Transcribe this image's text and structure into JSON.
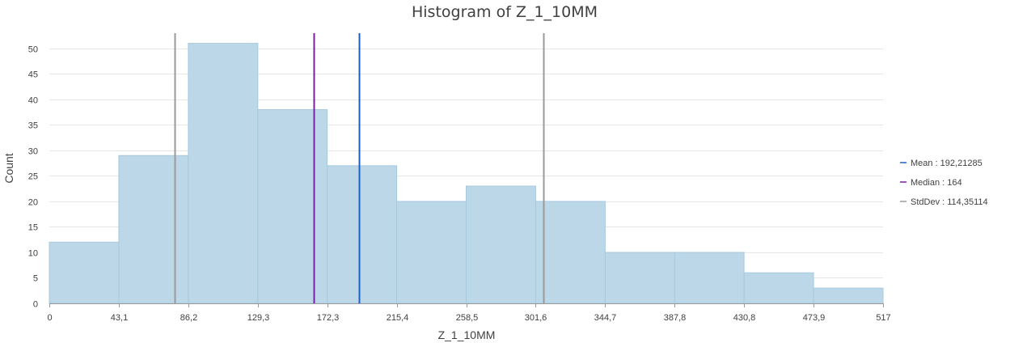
{
  "chart_data": {
    "type": "bar",
    "title": "Histogram of Z_1_10MM",
    "xlabel": "Z_1_10MM",
    "ylabel": "Count",
    "bin_edges": [
      0,
      43.1,
      86.2,
      129.3,
      172.3,
      215.4,
      258.5,
      301.6,
      344.7,
      387.8,
      430.8,
      473.9,
      517
    ],
    "x_tick_labels": [
      "0",
      "43,1",
      "86,2",
      "129,3",
      "172,3",
      "215,4",
      "258,5",
      "301,6",
      "344,7",
      "387,8",
      "430,8",
      "473,9",
      "517"
    ],
    "values": [
      12,
      29,
      51,
      38,
      27,
      20,
      23,
      20,
      10,
      10,
      6,
      3
    ],
    "ylim": [
      0,
      53
    ],
    "y_ticks": [
      0,
      5,
      10,
      15,
      20,
      25,
      30,
      35,
      40,
      45,
      50
    ],
    "xlim": [
      0,
      517
    ],
    "grid": true,
    "legend_position": "right",
    "statistics": {
      "mean": 192.21285,
      "median": 164,
      "stddev": 114.35114
    },
    "reference_lines": [
      {
        "name": "mean",
        "x": 192.21285,
        "color": "#1f5fbf"
      },
      {
        "name": "median",
        "x": 164,
        "color": "#7a1fa2"
      },
      {
        "name": "stddev-low",
        "x": 77.86171,
        "color": "#9a9a9a"
      },
      {
        "name": "stddev-high",
        "x": 306.56399,
        "color": "#9a9a9a"
      }
    ],
    "legend": [
      {
        "label": "Mean : 192,21285",
        "color": "#1f5fbf"
      },
      {
        "label": "Median : 164",
        "color": "#7a1fa2"
      },
      {
        "label": "StdDev : 114,35114",
        "color": "#9a9a9a"
      }
    ],
    "bar_fill": "#bcd8e8",
    "bar_stroke": "#a7c9de"
  }
}
